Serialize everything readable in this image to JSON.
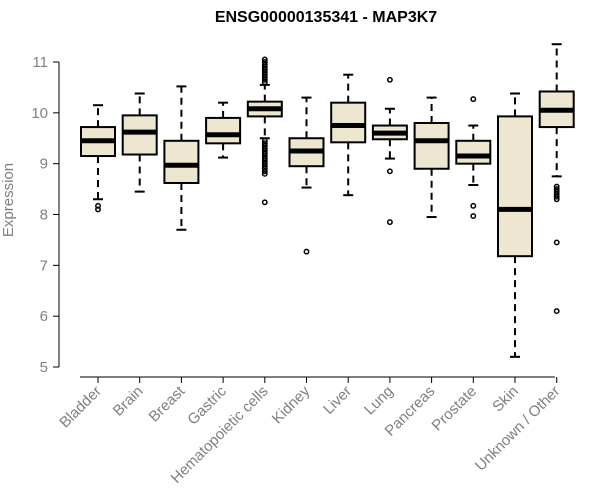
{
  "chart_data": {
    "type": "box",
    "title": "ENSG00000135341 - MAP3K7",
    "xlabel": "",
    "ylabel": "Expression",
    "ylim": [
      5,
      11.3
    ],
    "yticks": [
      5,
      6,
      7,
      8,
      9,
      10,
      11
    ],
    "box_fill": "#ede6d0",
    "categories": [
      "Bladder",
      "Brain",
      "Breast",
      "Gastric",
      "Hematopoietic cells",
      "Kidney",
      "Liver",
      "Lung",
      "Pancreas",
      "Prostate",
      "Skin",
      "Unknown / Other"
    ],
    "series": [
      {
        "name": "Bladder",
        "whisker_low": 8.3,
        "q1": 9.15,
        "median": 9.45,
        "q3": 9.72,
        "whisker_high": 10.15,
        "outliers": [
          8.1,
          8.17
        ]
      },
      {
        "name": "Brain",
        "whisker_low": 8.45,
        "q1": 9.18,
        "median": 9.62,
        "q3": 9.95,
        "whisker_high": 10.38,
        "outliers": []
      },
      {
        "name": "Breast",
        "whisker_low": 7.7,
        "q1": 8.62,
        "median": 8.97,
        "q3": 9.45,
        "whisker_high": 10.52,
        "outliers": []
      },
      {
        "name": "Gastric",
        "whisker_low": 9.12,
        "q1": 9.4,
        "median": 9.57,
        "q3": 9.9,
        "whisker_high": 10.2,
        "outliers": []
      },
      {
        "name": "Hematopoietic cells",
        "whisker_low": 9.5,
        "q1": 9.93,
        "median": 10.08,
        "q3": 10.22,
        "whisker_high": 10.55,
        "outliers": [
          8.24,
          8.8,
          8.85,
          8.9,
          8.95,
          9.0,
          9.05,
          9.1,
          9.15,
          9.2,
          9.25,
          9.3,
          9.35,
          9.4,
          9.45,
          10.6,
          10.65,
          10.7,
          10.75,
          10.8,
          10.85,
          10.9,
          10.95,
          11.0,
          11.05
        ]
      },
      {
        "name": "Kidney",
        "whisker_low": 8.53,
        "q1": 8.95,
        "median": 9.25,
        "q3": 9.5,
        "whisker_high": 10.3,
        "outliers": [
          7.27
        ]
      },
      {
        "name": "Liver",
        "whisker_low": 8.38,
        "q1": 9.42,
        "median": 9.75,
        "q3": 10.2,
        "whisker_high": 10.75,
        "outliers": []
      },
      {
        "name": "Lung",
        "whisker_low": 9.1,
        "q1": 9.48,
        "median": 9.6,
        "q3": 9.75,
        "whisker_high": 10.08,
        "outliers": [
          7.85,
          8.85,
          10.65
        ]
      },
      {
        "name": "Pancreas",
        "whisker_low": 7.95,
        "q1": 8.9,
        "median": 9.45,
        "q3": 9.8,
        "whisker_high": 10.3,
        "outliers": []
      },
      {
        "name": "Prostate",
        "whisker_low": 8.58,
        "q1": 9.0,
        "median": 9.15,
        "q3": 9.45,
        "whisker_high": 9.75,
        "outliers": [
          7.97,
          8.17,
          10.27
        ]
      },
      {
        "name": "Skin",
        "whisker_low": 5.2,
        "q1": 7.18,
        "median": 8.1,
        "q3": 9.93,
        "whisker_high": 10.38,
        "outliers": []
      },
      {
        "name": "Unknown / Other",
        "whisker_low": 8.75,
        "q1": 9.72,
        "median": 10.05,
        "q3": 10.42,
        "whisker_high": 11.35,
        "outliers": [
          6.1,
          7.45,
          8.3,
          8.35,
          8.4,
          8.45,
          8.5,
          8.55
        ]
      }
    ]
  }
}
